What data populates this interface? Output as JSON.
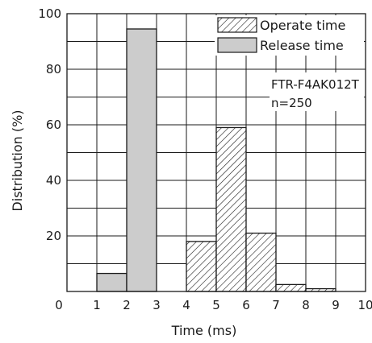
{
  "chart_data": {
    "type": "bar",
    "xlabel": "Time (ms)",
    "ylabel": "Distribution (%)",
    "xlim": [
      0,
      10
    ],
    "ylim": [
      0,
      100
    ],
    "x_ticks": [
      "0",
      "1",
      "2",
      "3",
      "4",
      "5",
      "6",
      "7",
      "8",
      "9",
      "10"
    ],
    "y_ticks": [
      "20",
      "40",
      "60",
      "80",
      "100"
    ],
    "grid": true,
    "legend_position": "top-right",
    "series": [
      {
        "name": "Operate time",
        "style": "hatched",
        "bins": [
          {
            "from": 4,
            "to": 5,
            "value": 18
          },
          {
            "from": 5,
            "to": 6,
            "value": 59
          },
          {
            "from": 6,
            "to": 7,
            "value": 21
          },
          {
            "from": 7,
            "to": 8,
            "value": 2.5
          },
          {
            "from": 8,
            "to": 9,
            "value": 1
          }
        ]
      },
      {
        "name": "Release time",
        "style": "gray",
        "color": "#cccccc",
        "bins": [
          {
            "from": 1,
            "to": 2,
            "value": 6.5
          },
          {
            "from": 2,
            "to": 3,
            "value": 94.5
          }
        ]
      }
    ],
    "annotation": {
      "model": "FTR-F4AK012T",
      "count": "n=250"
    }
  }
}
